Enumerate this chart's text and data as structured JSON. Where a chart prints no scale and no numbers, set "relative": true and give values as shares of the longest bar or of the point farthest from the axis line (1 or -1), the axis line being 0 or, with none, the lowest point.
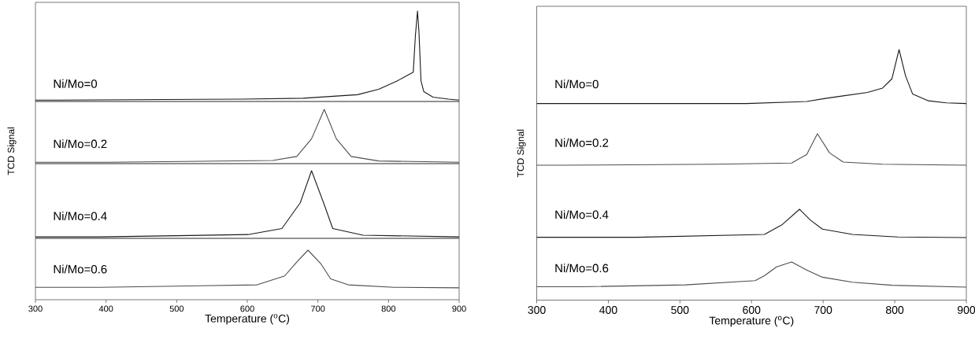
{
  "chart_data": [
    {
      "type": "line",
      "relative": true,
      "xlim": [
        300,
        900
      ],
      "tick_labels": false,
      "series": [
        {
          "name": "Ni/Mo=0",
          "color": "#1a1a1a",
          "x": [
            300,
            331,
            593,
            679,
            756,
            786,
            812,
            835,
            838,
            841,
            843,
            846,
            850,
            863,
            885,
            900
          ],
          "values": [
            0.007,
            0.007,
            0.017,
            0.027,
            0.067,
            0.127,
            0.22,
            0.317,
            0.72,
            1.0,
            0.78,
            0.22,
            0.1,
            0.04,
            0.017,
            0.007
          ]
        }
      ]
    },
    {
      "type": "line",
      "relative": true,
      "xlim": [
        300,
        900
      ],
      "tick_labels": false,
      "ylabel": "TCD Signal",
      "series": [
        {
          "name": "Ni/Mo=0.2",
          "color": "#4d4d4d",
          "x": [
            300,
            404,
            636,
            670,
            691,
            709,
            726,
            747,
            786,
            900
          ],
          "values": [
            0.01,
            0.01,
            0.045,
            0.12,
            0.45,
            1.0,
            0.45,
            0.12,
            0.035,
            0.01
          ]
        }
      ]
    },
    {
      "type": "line",
      "relative": true,
      "xlim": [
        300,
        900
      ],
      "tick_labels": false,
      "series": [
        {
          "name": "Ni/Mo=0.4",
          "color": "#1a1a1a",
          "x": [
            300,
            391,
            601,
            649,
            675,
            691,
            708,
            721,
            764,
            900
          ],
          "values": [
            0.01,
            0.01,
            0.045,
            0.135,
            0.52,
            1.0,
            0.52,
            0.135,
            0.036,
            0.01
          ]
        }
      ]
    },
    {
      "type": "line",
      "relative": true,
      "xlim": [
        300,
        900
      ],
      "xticks": [
        300,
        400,
        500,
        600,
        700,
        800,
        900
      ],
      "tick_labels": "x",
      "xlabel": "Temperature ($^{o}$C)",
      "series": [
        {
          "name": "Ni/Mo=0.6",
          "color": "#4d4d4d",
          "x": [
            300,
            391,
            614,
            653,
            670,
            686,
            704,
            718,
            743,
            808,
            900
          ],
          "values": [
            0.25,
            0.25,
            0.3,
            0.48,
            0.76,
            1.0,
            0.73,
            0.42,
            0.3,
            0.25,
            0.24
          ]
        }
      ]
    },
    {
      "type": "line",
      "relative": true,
      "xlim": [
        300,
        900
      ],
      "tick_labels": false,
      "series": [
        {
          "name": "Ni/Mo=0",
          "color": "#1a1a1a",
          "x": [
            300,
            364,
            593,
            677,
            703,
            724,
            762,
            783,
            796,
            806,
            815,
            825,
            847,
            872,
            900
          ],
          "values": [
            0.005,
            0.005,
            0.005,
            0.044,
            0.1,
            0.14,
            0.21,
            0.29,
            0.46,
            1.0,
            0.52,
            0.18,
            0.056,
            0.017,
            0.005
          ]
        }
      ]
    },
    {
      "type": "line",
      "relative": true,
      "xlim": [
        300,
        900
      ],
      "tick_labels": false,
      "ylabel": "TCD Signal",
      "series": [
        {
          "name": "Ni/Mo=0.2",
          "color": "#4d4d4d",
          "x": [
            300,
            335,
            550,
            656,
            677,
            692,
            709,
            728,
            783,
            900
          ],
          "values": [
            0,
            0,
            0.03,
            0.07,
            0.34,
            1.0,
            0.39,
            0.1,
            0.03,
            0
          ]
        }
      ]
    },
    {
      "type": "line",
      "relative": true,
      "xlim": [
        300,
        900
      ],
      "tick_labels": false,
      "series": [
        {
          "name": "Ni/Mo=0.4",
          "color": "#1a1a1a",
          "x": [
            300,
            440,
            618,
            643,
            667,
            682,
            699,
            741,
            804,
            900
          ],
          "values": [
            0.01,
            0.01,
            0.11,
            0.46,
            1.0,
            0.62,
            0.3,
            0.11,
            0.02,
            0
          ]
        }
      ]
    },
    {
      "type": "line",
      "relative": true,
      "xlim": [
        300,
        900
      ],
      "xticks": [
        300,
        400,
        500,
        600,
        700,
        800,
        900
      ],
      "tick_labels": "x",
      "xlabel": "Temperature ($^{o}$C)",
      "series": [
        {
          "name": "Ni/Mo=0.6",
          "color": "#4d4d4d",
          "x": [
            300,
            364,
            508,
            605,
            618,
            635,
            656,
            677,
            699,
            741,
            796,
            900
          ],
          "values": [
            0.35,
            0.35,
            0.4,
            0.51,
            0.64,
            0.87,
            1.0,
            0.79,
            0.6,
            0.47,
            0.39,
            0.34
          ]
        }
      ]
    }
  ]
}
